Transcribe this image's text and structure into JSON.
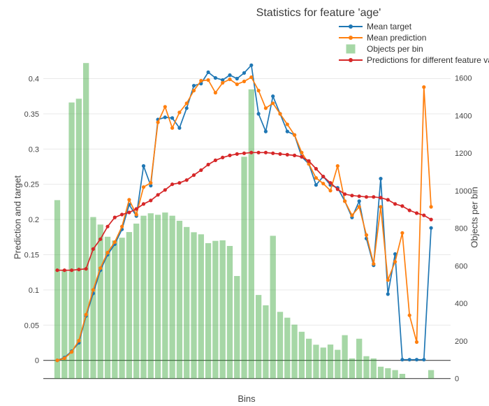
{
  "title": "Statistics for feature 'age'",
  "legend": {
    "items": [
      {
        "label": "Mean target",
        "color": "#1f77b4",
        "marker": "line-dot"
      },
      {
        "label": "Mean prediction",
        "color": "#ff7f0e",
        "marker": "line-dot"
      },
      {
        "label": "Objects per bin",
        "color": "#a6d7a6",
        "marker": "square"
      },
      {
        "label": "Predictions for different feature values",
        "color": "#d62728",
        "marker": "line-dot"
      }
    ]
  },
  "axes": {
    "y_left": {
      "title": "Prediction and target",
      "ticks": [
        {
          "v": 0,
          "label": "0"
        },
        {
          "v": 0.05,
          "label": "0.05"
        },
        {
          "v": 0.1,
          "label": "0.1"
        },
        {
          "v": 0.15,
          "label": "0.15"
        },
        {
          "v": 0.2,
          "label": "0.2"
        },
        {
          "v": 0.25,
          "label": "0.25"
        },
        {
          "v": 0.3,
          "label": "0.3"
        },
        {
          "v": 0.35,
          "label": "0.35"
        },
        {
          "v": 0.4,
          "label": "0.4"
        }
      ]
    },
    "y_right": {
      "title": "Objects per bin",
      "ticks": [
        {
          "v": 0,
          "label": "0"
        },
        {
          "v": 200,
          "label": "200"
        },
        {
          "v": 400,
          "label": "400"
        },
        {
          "v": 600,
          "label": "600"
        },
        {
          "v": 800,
          "label": "800"
        },
        {
          "v": 1000,
          "label": "1000"
        },
        {
          "v": 1200,
          "label": "1200"
        },
        {
          "v": 1400,
          "label": "1400"
        },
        {
          "v": 1600,
          "label": "1600"
        }
      ]
    },
    "x": {
      "title": "Bins"
    }
  },
  "chart_data": {
    "type": "combo",
    "bins": 53,
    "x_title": "Bins",
    "left_axis_label": "Prediction and target",
    "right_axis_label": "Objects per bin",
    "left_axis_range": [
      -0.026,
      0.43
    ],
    "right_axis_range": [
      0,
      1710
    ],
    "grid": true,
    "legend_position": "top-right",
    "series": [
      {
        "name": "Mean target",
        "type": "line",
        "axis": "left",
        "color": "#1f77b4",
        "values": [
          0.0,
          0.004,
          0.013,
          0.025,
          0.063,
          0.095,
          0.128,
          0.15,
          0.165,
          0.186,
          0.221,
          0.205,
          0.276,
          0.248,
          0.342,
          0.345,
          0.344,
          0.33,
          0.358,
          0.39,
          0.393,
          0.409,
          0.401,
          0.398,
          0.405,
          0.4,
          0.408,
          0.419,
          0.35,
          0.325,
          0.375,
          0.35,
          0.325,
          0.32,
          0.289,
          0.279,
          0.249,
          0.261,
          0.249,
          0.245,
          0.226,
          0.203,
          0.226,
          0.173,
          0.135,
          0.258,
          0.094,
          0.151,
          0.001,
          0.001,
          0.001,
          0.001,
          0.188
        ]
      },
      {
        "name": "Mean prediction",
        "type": "line",
        "axis": "left",
        "color": "#ff7f0e",
        "values": [
          0.0,
          0.003,
          0.012,
          0.028,
          0.065,
          0.1,
          0.131,
          0.153,
          0.168,
          0.19,
          0.228,
          0.207,
          0.246,
          0.252,
          0.338,
          0.36,
          0.33,
          0.352,
          0.365,
          0.383,
          0.397,
          0.398,
          0.38,
          0.394,
          0.399,
          0.392,
          0.396,
          0.402,
          0.383,
          0.358,
          0.365,
          0.35,
          0.335,
          0.32,
          0.295,
          0.279,
          0.259,
          0.251,
          0.241,
          0.276,
          0.226,
          0.206,
          0.218,
          0.178,
          0.137,
          0.218,
          0.114,
          0.14,
          0.181,
          0.064,
          0.026,
          0.388,
          0.218
        ]
      },
      {
        "name": "Objects per bin",
        "type": "bar",
        "axis": "right",
        "color": "rgba(44,160,44,0.42)",
        "values": [
          950,
          580,
          1470,
          1490,
          1680,
          860,
          820,
          755,
          735,
          750,
          780,
          825,
          867,
          880,
          872,
          884,
          867,
          840,
          807,
          779,
          768,
          721,
          733,
          736,
          706,
          546,
          1181,
          1540,
          445,
          390,
          760,
          355,
          324,
          287,
          249,
          212,
          180,
          165,
          181,
          153,
          231,
          107,
          212,
          119,
          107,
          63,
          55,
          45,
          25,
          0,
          0,
          0,
          45
        ]
      },
      {
        "name": "Predictions for different feature values",
        "type": "line",
        "axis": "left",
        "color": "#d62728",
        "values": [
          0.128,
          0.128,
          0.128,
          0.129,
          0.13,
          0.158,
          0.172,
          0.19,
          0.203,
          0.207,
          0.21,
          0.215,
          0.222,
          0.227,
          0.235,
          0.242,
          0.25,
          0.252,
          0.256,
          0.263,
          0.27,
          0.278,
          0.284,
          0.288,
          0.291,
          0.293,
          0.294,
          0.295,
          0.295,
          0.295,
          0.294,
          0.293,
          0.292,
          0.291,
          0.289,
          0.283,
          0.272,
          0.261,
          0.252,
          0.243,
          0.236,
          0.234,
          0.233,
          0.232,
          0.232,
          0.231,
          0.228,
          0.222,
          0.219,
          0.213,
          0.209,
          0.206,
          0.2
        ]
      }
    ]
  }
}
